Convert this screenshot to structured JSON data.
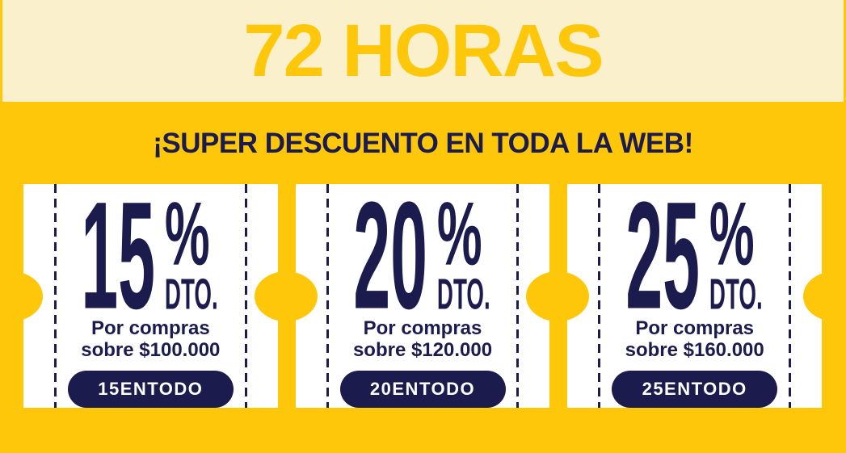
{
  "banner": {
    "countdown": "72 HORAS",
    "headline": "¡SUPER DESCUENTO EN TODA LA WEB!"
  },
  "coupons": [
    {
      "percent": "15",
      "percent_symbol": "%",
      "unit": "DTO.",
      "condition_line1": "Por compras",
      "condition_line2": "sobre $100.000",
      "code": "15ENTODO"
    },
    {
      "percent": "20",
      "percent_symbol": "%",
      "unit": "DTO.",
      "condition_line1": "Por compras",
      "condition_line2": "sobre $120.000",
      "code": "20ENTODO"
    },
    {
      "percent": "25",
      "percent_symbol": "%",
      "unit": "DTO.",
      "condition_line1": "Por compras",
      "condition_line2": "sobre $160.000",
      "code": "25ENTODO"
    }
  ],
  "colors": {
    "yellow": "#FFC70A",
    "cream": "#FBF0CC",
    "navy": "#1B1B4D",
    "card_white": "#FFFFFF"
  }
}
